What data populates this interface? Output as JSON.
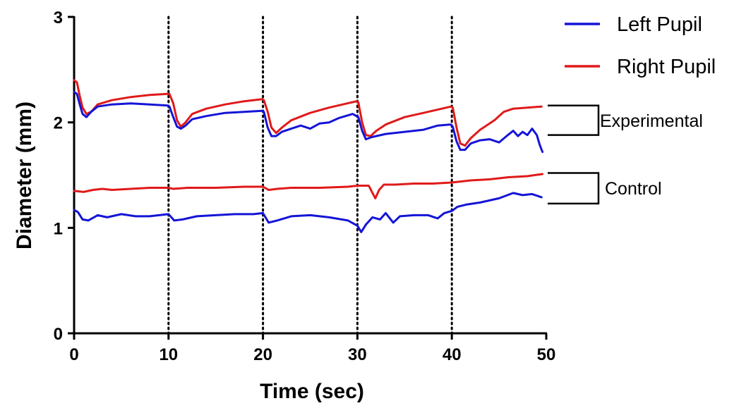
{
  "chart_data": {
    "type": "line",
    "xlabel": "Time (sec)",
    "ylabel": "Diameter (mm)",
    "xlim": [
      0,
      50
    ],
    "ylim": [
      0,
      3
    ],
    "x_ticks": [
      "0",
      "10",
      "20",
      "30",
      "40",
      "50"
    ],
    "y_ticks": [
      "0",
      "1",
      "2",
      "3"
    ],
    "stimulus_lines_x": [
      10,
      20,
      30,
      40
    ],
    "grid": false,
    "legend_position": "top-right",
    "colors": {
      "left": "#1414d8",
      "right": "#e01a1a"
    },
    "legend": [
      {
        "label": "Left Pupil",
        "color": "#1414d8"
      },
      {
        "label": "Right Pupil",
        "color": "#e01a1a"
      }
    ],
    "group_brackets": [
      {
        "label": "Experimental",
        "y_top": 2.16,
        "y_bottom": 1.88
      },
      {
        "label": "Control",
        "y_top": 1.52,
        "y_bottom": 1.23
      }
    ],
    "series": [
      {
        "name": "Right Pupil",
        "group": "Experimental",
        "color": "#e01a1a",
        "points": [
          [
            0,
            2.4
          ],
          [
            0.3,
            2.38
          ],
          [
            0.6,
            2.25
          ],
          [
            0.9,
            2.14
          ],
          [
            1.3,
            2.08
          ],
          [
            1.8,
            2.1
          ],
          [
            2.5,
            2.17
          ],
          [
            4,
            2.21
          ],
          [
            6,
            2.24
          ],
          [
            8,
            2.26
          ],
          [
            9.9,
            2.27
          ],
          [
            10.1,
            2.27
          ],
          [
            10.5,
            2.18
          ],
          [
            10.9,
            2.02
          ],
          [
            11.3,
            1.96
          ],
          [
            11.8,
            2.0
          ],
          [
            12.5,
            2.08
          ],
          [
            14,
            2.13
          ],
          [
            16,
            2.17
          ],
          [
            18,
            2.2
          ],
          [
            19.9,
            2.22
          ],
          [
            20.1,
            2.21
          ],
          [
            20.5,
            2.1
          ],
          [
            20.9,
            1.95
          ],
          [
            21.4,
            1.9
          ],
          [
            22,
            1.95
          ],
          [
            23,
            2.02
          ],
          [
            25,
            2.09
          ],
          [
            27,
            2.14
          ],
          [
            29.9,
            2.2
          ],
          [
            30.1,
            2.19
          ],
          [
            30.5,
            2.0
          ],
          [
            30.9,
            1.88
          ],
          [
            31.4,
            1.87
          ],
          [
            32,
            1.92
          ],
          [
            33,
            1.98
          ],
          [
            35,
            2.05
          ],
          [
            37,
            2.09
          ],
          [
            39.9,
            2.15
          ],
          [
            40.1,
            2.14
          ],
          [
            40.5,
            1.95
          ],
          [
            40.9,
            1.8
          ],
          [
            41.4,
            1.78
          ],
          [
            42,
            1.85
          ],
          [
            43,
            1.93
          ],
          [
            44.5,
            2.02
          ],
          [
            45.5,
            2.1
          ],
          [
            46.5,
            2.13
          ],
          [
            48,
            2.14
          ],
          [
            49.5,
            2.15
          ]
        ]
      },
      {
        "name": "Left Pupil",
        "group": "Experimental",
        "color": "#1414d8",
        "points": [
          [
            0,
            2.29
          ],
          [
            0.3,
            2.27
          ],
          [
            0.6,
            2.17
          ],
          [
            0.9,
            2.08
          ],
          [
            1.3,
            2.05
          ],
          [
            1.8,
            2.1
          ],
          [
            2.5,
            2.15
          ],
          [
            4,
            2.17
          ],
          [
            6,
            2.18
          ],
          [
            8,
            2.17
          ],
          [
            9.9,
            2.16
          ],
          [
            10.1,
            2.15
          ],
          [
            10.5,
            2.05
          ],
          [
            10.9,
            1.96
          ],
          [
            11.3,
            1.94
          ],
          [
            11.8,
            1.97
          ],
          [
            12.5,
            2.03
          ],
          [
            14,
            2.06
          ],
          [
            16,
            2.09
          ],
          [
            18,
            2.1
          ],
          [
            19.9,
            2.11
          ],
          [
            20.1,
            2.1
          ],
          [
            20.5,
            1.95
          ],
          [
            20.9,
            1.87
          ],
          [
            21.4,
            1.87
          ],
          [
            22,
            1.91
          ],
          [
            23,
            1.94
          ],
          [
            24,
            1.97
          ],
          [
            25,
            1.94
          ],
          [
            26,
            1.99
          ],
          [
            27,
            2.0
          ],
          [
            28,
            2.04
          ],
          [
            29.5,
            2.08
          ],
          [
            30.1,
            2.05
          ],
          [
            30.5,
            1.92
          ],
          [
            30.9,
            1.84
          ],
          [
            31.5,
            1.86
          ],
          [
            33,
            1.89
          ],
          [
            35,
            1.91
          ],
          [
            37,
            1.93
          ],
          [
            38.5,
            1.97
          ],
          [
            39.9,
            1.98
          ],
          [
            40.1,
            1.96
          ],
          [
            40.5,
            1.82
          ],
          [
            40.9,
            1.74
          ],
          [
            41.4,
            1.74
          ],
          [
            42,
            1.8
          ],
          [
            43,
            1.83
          ],
          [
            44,
            1.84
          ],
          [
            45,
            1.81
          ],
          [
            45.8,
            1.87
          ],
          [
            46.5,
            1.92
          ],
          [
            47,
            1.87
          ],
          [
            47.5,
            1.91
          ],
          [
            48,
            1.88
          ],
          [
            48.5,
            1.94
          ],
          [
            49,
            1.88
          ],
          [
            49.3,
            1.79
          ],
          [
            49.6,
            1.72
          ]
        ]
      },
      {
        "name": "Right Pupil",
        "group": "Control",
        "color": "#e01a1a",
        "points": [
          [
            0,
            1.35
          ],
          [
            1,
            1.34
          ],
          [
            2,
            1.36
          ],
          [
            3,
            1.37
          ],
          [
            4,
            1.36
          ],
          [
            6,
            1.37
          ],
          [
            8,
            1.38
          ],
          [
            10,
            1.38
          ],
          [
            10.5,
            1.37
          ],
          [
            12,
            1.38
          ],
          [
            15,
            1.38
          ],
          [
            18,
            1.39
          ],
          [
            20,
            1.39
          ],
          [
            20.6,
            1.36
          ],
          [
            21.5,
            1.37
          ],
          [
            23,
            1.38
          ],
          [
            26,
            1.38
          ],
          [
            29,
            1.39
          ],
          [
            30,
            1.4
          ],
          [
            31.2,
            1.4
          ],
          [
            31.6,
            1.33
          ],
          [
            31.9,
            1.28
          ],
          [
            32.3,
            1.36
          ],
          [
            32.8,
            1.41
          ],
          [
            34,
            1.41
          ],
          [
            36,
            1.42
          ],
          [
            38,
            1.42
          ],
          [
            40,
            1.43
          ],
          [
            42,
            1.45
          ],
          [
            44,
            1.46
          ],
          [
            46,
            1.48
          ],
          [
            48,
            1.49
          ],
          [
            49.6,
            1.51
          ]
        ]
      },
      {
        "name": "Left Pupil",
        "group": "Control",
        "color": "#1414d8",
        "points": [
          [
            0,
            1.17
          ],
          [
            0.4,
            1.15
          ],
          [
            0.9,
            1.08
          ],
          [
            1.5,
            1.07
          ],
          [
            2.5,
            1.12
          ],
          [
            3.5,
            1.1
          ],
          [
            5,
            1.13
          ],
          [
            6.5,
            1.11
          ],
          [
            8,
            1.11
          ],
          [
            10,
            1.13
          ],
          [
            10.6,
            1.07
          ],
          [
            11.5,
            1.08
          ],
          [
            13,
            1.11
          ],
          [
            15,
            1.12
          ],
          [
            17,
            1.13
          ],
          [
            19,
            1.13
          ],
          [
            20,
            1.14
          ],
          [
            20.6,
            1.05
          ],
          [
            21.5,
            1.07
          ],
          [
            23,
            1.11
          ],
          [
            25,
            1.12
          ],
          [
            27,
            1.1
          ],
          [
            29,
            1.07
          ],
          [
            30,
            1.02
          ],
          [
            30.4,
            0.96
          ],
          [
            30.9,
            1.03
          ],
          [
            31.6,
            1.1
          ],
          [
            32.4,
            1.08
          ],
          [
            33,
            1.14
          ],
          [
            33.8,
            1.05
          ],
          [
            34.5,
            1.11
          ],
          [
            36,
            1.12
          ],
          [
            37.5,
            1.12
          ],
          [
            38.5,
            1.09
          ],
          [
            39.2,
            1.14
          ],
          [
            40,
            1.16
          ],
          [
            40.6,
            1.2
          ],
          [
            41.5,
            1.22
          ],
          [
            43,
            1.24
          ],
          [
            45,
            1.28
          ],
          [
            46.5,
            1.33
          ],
          [
            47.5,
            1.31
          ],
          [
            48.5,
            1.32
          ],
          [
            49.5,
            1.29
          ]
        ]
      }
    ]
  }
}
